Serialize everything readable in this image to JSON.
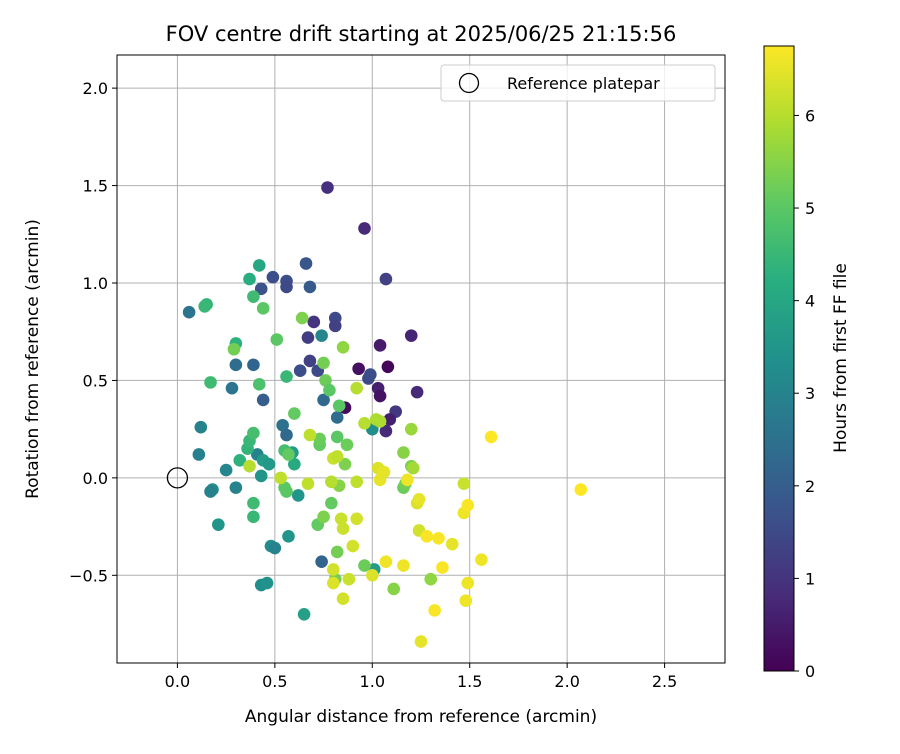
{
  "chart_data": {
    "type": "scatter",
    "title": "FOV centre drift starting at 2025/06/25 21:15:56",
    "xlabel": "Angular distance from reference (arcmin)",
    "ylabel": "Rotation from reference (arcmin)",
    "xlim": [
      -0.31,
      2.81
    ],
    "ylim": [
      -0.95,
      2.17
    ],
    "xticks": [
      "0.0",
      "0.5",
      "1.0",
      "1.5",
      "2.0",
      "2.5"
    ],
    "xtick_values": [
      0,
      0.5,
      1.0,
      1.5,
      2.0,
      2.5
    ],
    "yticks": [
      "−0.5",
      "0.0",
      "0.5",
      "1.0",
      "1.5",
      "2.0"
    ],
    "ytick_values": [
      -0.5,
      0,
      0.5,
      1.0,
      1.5,
      2.0
    ],
    "grid": true,
    "legend": {
      "position": "top-right",
      "label": "Reference platepar"
    },
    "reference_point": {
      "x": 0.0,
      "y": 0.0,
      "label": "Reference platepar"
    },
    "colorbar": {
      "label": "Hours from first FF file",
      "range": [
        0,
        6.75
      ],
      "ticks": [
        "0",
        "1",
        "2",
        "3",
        "4",
        "5",
        "6"
      ],
      "tick_values": [
        0,
        1,
        2,
        3,
        4,
        5,
        6
      ],
      "colormap": "viridis"
    },
    "points": [
      {
        "x": 0.77,
        "y": 1.49,
        "c": 0.9
      },
      {
        "x": 0.96,
        "y": 1.28,
        "c": 0.8
      },
      {
        "x": 1.07,
        "y": 1.02,
        "c": 1.3
      },
      {
        "x": 1.2,
        "y": 0.73,
        "c": 0.7
      },
      {
        "x": 1.04,
        "y": 0.68,
        "c": 0.5
      },
      {
        "x": 1.08,
        "y": 0.57,
        "c": 0.1
      },
      {
        "x": 0.93,
        "y": 0.56,
        "c": 0.3
      },
      {
        "x": 1.03,
        "y": 0.46,
        "c": 0.6
      },
      {
        "x": 1.04,
        "y": 0.42,
        "c": 0.3
      },
      {
        "x": 1.23,
        "y": 0.44,
        "c": 0.8
      },
      {
        "x": 0.86,
        "y": 0.36,
        "c": 0.2
      },
      {
        "x": 1.12,
        "y": 0.34,
        "c": 1.1
      },
      {
        "x": 1.07,
        "y": 0.24,
        "c": 0.8
      },
      {
        "x": 1.09,
        "y": 0.3,
        "c": 0.6
      },
      {
        "x": 0.98,
        "y": 0.51,
        "c": 1.5
      },
      {
        "x": 0.99,
        "y": 0.53,
        "c": 1.6
      },
      {
        "x": 0.81,
        "y": 0.82,
        "c": 1.5
      },
      {
        "x": 0.81,
        "y": 0.78,
        "c": 1.3
      },
      {
        "x": 0.7,
        "y": 0.8,
        "c": 1.0
      },
      {
        "x": 0.67,
        "y": 0.72,
        "c": 1.2
      },
      {
        "x": 0.68,
        "y": 0.6,
        "c": 1.3
      },
      {
        "x": 0.72,
        "y": 0.55,
        "c": 1.5
      },
      {
        "x": 0.63,
        "y": 0.55,
        "c": 1.6
      },
      {
        "x": 0.66,
        "y": 1.1,
        "c": 1.8
      },
      {
        "x": 0.68,
        "y": 0.98,
        "c": 1.9
      },
      {
        "x": 0.49,
        "y": 1.03,
        "c": 1.6
      },
      {
        "x": 0.56,
        "y": 1.01,
        "c": 1.6
      },
      {
        "x": 0.56,
        "y": 0.98,
        "c": 1.5
      },
      {
        "x": 0.43,
        "y": 0.97,
        "c": 1.7
      },
      {
        "x": 0.44,
        "y": 0.4,
        "c": 2.0
      },
      {
        "x": 0.39,
        "y": 0.58,
        "c": 2.2
      },
      {
        "x": 0.3,
        "y": 0.58,
        "c": 2.4
      },
      {
        "x": 0.28,
        "y": 0.46,
        "c": 2.6
      },
      {
        "x": 0.06,
        "y": 0.85,
        "c": 2.6
      },
      {
        "x": 0.75,
        "y": 0.4,
        "c": 2.3
      },
      {
        "x": 0.82,
        "y": 0.31,
        "c": 2.4
      },
      {
        "x": 0.74,
        "y": 0.73,
        "c": 3.1
      },
      {
        "x": 0.54,
        "y": 0.27,
        "c": 2.5
      },
      {
        "x": 0.56,
        "y": 0.22,
        "c": 2.3
      },
      {
        "x": 0.74,
        "y": -0.43,
        "c": 2.2
      },
      {
        "x": 1.0,
        "y": 0.25,
        "c": 3.3
      },
      {
        "x": 0.12,
        "y": 0.26,
        "c": 3.0
      },
      {
        "x": 0.11,
        "y": 0.12,
        "c": 2.9
      },
      {
        "x": 0.25,
        "y": 0.04,
        "c": 3.1
      },
      {
        "x": 0.3,
        "y": -0.05,
        "c": 3.0
      },
      {
        "x": 0.18,
        "y": -0.06,
        "c": 3.3
      },
      {
        "x": 0.17,
        "y": -0.07,
        "c": 3.0
      },
      {
        "x": 0.21,
        "y": -0.24,
        "c": 3.5
      },
      {
        "x": 0.41,
        "y": 0.12,
        "c": 3.0
      },
      {
        "x": 0.44,
        "y": 0.09,
        "c": 3.7
      },
      {
        "x": 0.43,
        "y": 0.01,
        "c": 3.5
      },
      {
        "x": 0.47,
        "y": 0.07,
        "c": 3.6
      },
      {
        "x": 0.48,
        "y": -0.35,
        "c": 3.3
      },
      {
        "x": 0.5,
        "y": -0.36,
        "c": 3.0
      },
      {
        "x": 0.43,
        "y": -0.55,
        "c": 3.3
      },
      {
        "x": 0.46,
        "y": -0.54,
        "c": 3.4
      },
      {
        "x": 0.57,
        "y": -0.3,
        "c": 3.5
      },
      {
        "x": 0.62,
        "y": -0.09,
        "c": 3.5
      },
      {
        "x": 0.59,
        "y": 0.13,
        "c": 3.7
      },
      {
        "x": 0.6,
        "y": 0.07,
        "c": 4.1
      },
      {
        "x": 0.65,
        "y": -0.7,
        "c": 3.8
      },
      {
        "x": 1.01,
        "y": -0.47,
        "c": 3.7
      },
      {
        "x": 0.39,
        "y": -0.2,
        "c": 4.5
      },
      {
        "x": 0.39,
        "y": -0.13,
        "c": 4.6
      },
      {
        "x": 0.32,
        "y": 0.09,
        "c": 4.3
      },
      {
        "x": 0.36,
        "y": 0.15,
        "c": 4.4
      },
      {
        "x": 0.37,
        "y": 0.19,
        "c": 4.5
      },
      {
        "x": 0.39,
        "y": 0.23,
        "c": 4.7
      },
      {
        "x": 0.42,
        "y": 1.09,
        "c": 4.0
      },
      {
        "x": 0.37,
        "y": 1.02,
        "c": 4.2
      },
      {
        "x": 0.39,
        "y": 0.93,
        "c": 4.6
      },
      {
        "x": 0.15,
        "y": 0.89,
        "c": 4.4
      },
      {
        "x": 0.14,
        "y": 0.88,
        "c": 4.5
      },
      {
        "x": 0.3,
        "y": 0.69,
        "c": 4.3
      },
      {
        "x": 0.44,
        "y": 0.87,
        "c": 5.0
      },
      {
        "x": 0.17,
        "y": 0.49,
        "c": 4.6
      },
      {
        "x": 0.42,
        "y": 0.48,
        "c": 4.8
      },
      {
        "x": 0.56,
        "y": 0.52,
        "c": 4.5
      },
      {
        "x": 0.29,
        "y": 0.66,
        "c": 5.3
      },
      {
        "x": 0.51,
        "y": 0.71,
        "c": 5.0
      },
      {
        "x": 0.64,
        "y": 0.82,
        "c": 5.4
      },
      {
        "x": 0.6,
        "y": 0.33,
        "c": 5.1
      },
      {
        "x": 0.75,
        "y": 0.59,
        "c": 5.3
      },
      {
        "x": 0.76,
        "y": 0.5,
        "c": 5.2
      },
      {
        "x": 0.78,
        "y": 0.45,
        "c": 5.0
      },
      {
        "x": 0.83,
        "y": 0.37,
        "c": 5.0
      },
      {
        "x": 0.85,
        "y": 0.67,
        "c": 5.6
      },
      {
        "x": 0.55,
        "y": 0.14,
        "c": 4.7
      },
      {
        "x": 0.57,
        "y": 0.12,
        "c": 5.1
      },
      {
        "x": 0.55,
        "y": -0.05,
        "c": 5.0
      },
      {
        "x": 0.56,
        "y": -0.07,
        "c": 5.0
      },
      {
        "x": 0.72,
        "y": -0.24,
        "c": 5.1
      },
      {
        "x": 0.75,
        "y": -0.2,
        "c": 5.4
      },
      {
        "x": 0.73,
        "y": 0.17,
        "c": 5.1
      },
      {
        "x": 0.73,
        "y": 0.2,
        "c": 5.2
      },
      {
        "x": 0.86,
        "y": 0.07,
        "c": 5.4
      },
      {
        "x": 0.87,
        "y": 0.17,
        "c": 5.2
      },
      {
        "x": 0.82,
        "y": 0.21,
        "c": 5.0
      },
      {
        "x": 0.79,
        "y": -0.13,
        "c": 5.1
      },
      {
        "x": 0.83,
        "y": -0.04,
        "c": 5.5
      },
      {
        "x": 0.82,
        "y": -0.38,
        "c": 5.3
      },
      {
        "x": 0.81,
        "y": -0.52,
        "c": 5.3
      },
      {
        "x": 0.96,
        "y": -0.45,
        "c": 5.2
      },
      {
        "x": 1.11,
        "y": -0.57,
        "c": 5.5
      },
      {
        "x": 1.16,
        "y": 0.13,
        "c": 5.5
      },
      {
        "x": 1.16,
        "y": -0.05,
        "c": 5.2
      },
      {
        "x": 1.17,
        "y": -0.03,
        "c": 5.3
      },
      {
        "x": 1.2,
        "y": 0.06,
        "c": 5.4
      },
      {
        "x": 1.21,
        "y": 0.05,
        "c": 5.8
      },
      {
        "x": 1.2,
        "y": 0.25,
        "c": 5.7
      },
      {
        "x": 1.3,
        "y": -0.52,
        "c": 5.6
      },
      {
        "x": 1.02,
        "y": 0.3,
        "c": 5.9
      },
      {
        "x": 1.04,
        "y": 0.29,
        "c": 5.9
      },
      {
        "x": 0.96,
        "y": 0.28,
        "c": 6.0
      },
      {
        "x": 0.92,
        "y": 0.46,
        "c": 6.0
      },
      {
        "x": 0.37,
        "y": 0.06,
        "c": 6.0
      },
      {
        "x": 0.53,
        "y": 0.0,
        "c": 6.1
      },
      {
        "x": 0.68,
        "y": 0.22,
        "c": 6.1
      },
      {
        "x": 0.67,
        "y": -0.03,
        "c": 6.1
      },
      {
        "x": 0.79,
        "y": -0.02,
        "c": 6.0
      },
      {
        "x": 0.8,
        "y": 0.1,
        "c": 6.2
      },
      {
        "x": 0.82,
        "y": 0.11,
        "c": 6.1
      },
      {
        "x": 0.84,
        "y": -0.21,
        "c": 6.2
      },
      {
        "x": 0.85,
        "y": -0.26,
        "c": 6.2
      },
      {
        "x": 0.92,
        "y": -0.02,
        "c": 6.1
      },
      {
        "x": 0.92,
        "y": -0.21,
        "c": 6.3
      },
      {
        "x": 0.9,
        "y": -0.35,
        "c": 6.3
      },
      {
        "x": 0.88,
        "y": -0.52,
        "c": 6.2
      },
      {
        "x": 0.85,
        "y": -0.62,
        "c": 6.3
      },
      {
        "x": 0.8,
        "y": -0.47,
        "c": 6.3
      },
      {
        "x": 0.8,
        "y": -0.54,
        "c": 6.4
      },
      {
        "x": 1.0,
        "y": -0.5,
        "c": 6.4
      },
      {
        "x": 1.03,
        "y": 0.05,
        "c": 6.4
      },
      {
        "x": 1.04,
        "y": -0.01,
        "c": 6.5
      },
      {
        "x": 1.06,
        "y": 0.03,
        "c": 6.5
      },
      {
        "x": 1.07,
        "y": -0.43,
        "c": 6.6
      },
      {
        "x": 1.16,
        "y": -0.45,
        "c": 6.6
      },
      {
        "x": 1.18,
        "y": -0.01,
        "c": 6.6
      },
      {
        "x": 1.23,
        "y": -0.13,
        "c": 6.4
      },
      {
        "x": 1.24,
        "y": -0.11,
        "c": 6.5
      },
      {
        "x": 1.24,
        "y": -0.27,
        "c": 6.3
      },
      {
        "x": 1.28,
        "y": -0.3,
        "c": 6.7
      },
      {
        "x": 1.34,
        "y": -0.31,
        "c": 6.7
      },
      {
        "x": 1.36,
        "y": -0.46,
        "c": 6.7
      },
      {
        "x": 1.41,
        "y": -0.34,
        "c": 6.5
      },
      {
        "x": 1.47,
        "y": -0.03,
        "c": 6.2
      },
      {
        "x": 1.47,
        "y": -0.18,
        "c": 6.6
      },
      {
        "x": 1.49,
        "y": -0.14,
        "c": 6.7
      },
      {
        "x": 1.49,
        "y": -0.54,
        "c": 6.6
      },
      {
        "x": 1.48,
        "y": -0.63,
        "c": 6.6
      },
      {
        "x": 1.32,
        "y": -0.68,
        "c": 6.7
      },
      {
        "x": 1.25,
        "y": -0.84,
        "c": 6.5
      },
      {
        "x": 1.56,
        "y": -0.42,
        "c": 6.6
      },
      {
        "x": 1.61,
        "y": 0.21,
        "c": 6.75
      },
      {
        "x": 2.07,
        "y": -0.06,
        "c": 6.75
      }
    ]
  }
}
